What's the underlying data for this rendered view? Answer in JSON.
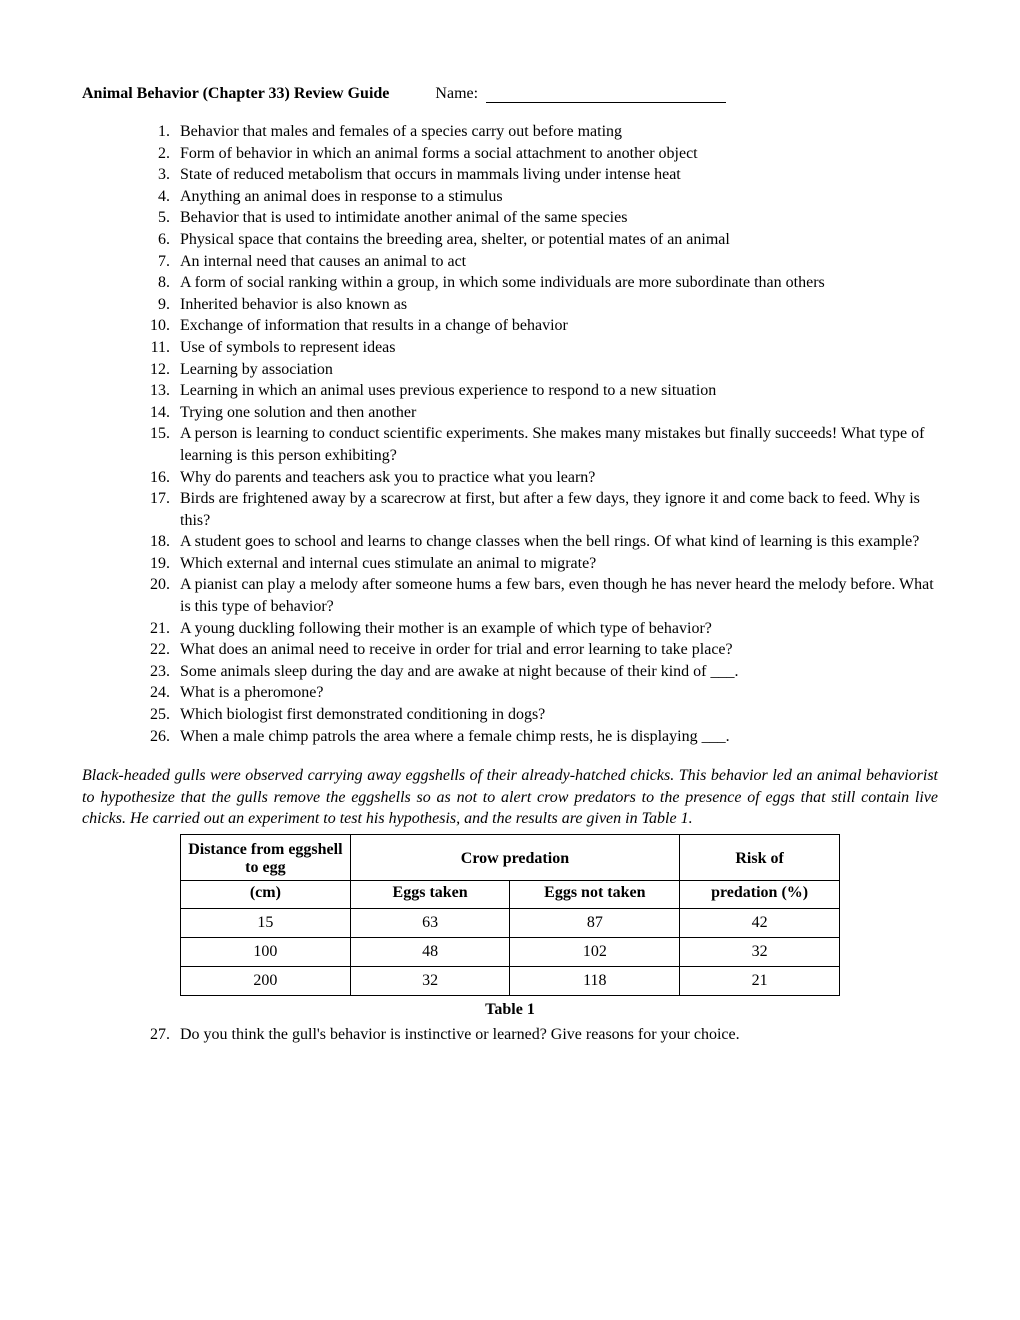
{
  "header": {
    "title": "Animal Behavior (Chapter 33) Review Guide",
    "name_label": "Name:"
  },
  "questions": [
    "Behavior that males and females of a species carry out before mating",
    "Form of behavior in which an animal forms a social attachment to another object",
    "State of reduced metabolism that occurs in mammals living under intense heat",
    "Anything an animal does in response to a stimulus",
    "Behavior that is used to intimidate another animal of the same species",
    "Physical space that contains the breeding area, shelter, or potential mates of an animal",
    "An internal need that causes an animal to act",
    "A form of social ranking within a group, in which some individuals are more subordinate than others",
    "Inherited behavior is also known as",
    "Exchange of information that results in a change of behavior",
    "Use of symbols to represent ideas",
    "Learning by association",
    "Learning in which an animal uses previous experience to respond to a new situation",
    "Trying one solution and then another",
    "A person is learning to conduct scientific experiments. She makes many mistakes but finally succeeds! What type of learning is this person exhibiting?",
    "Why do parents and teachers ask you to practice what you learn?",
    "Birds are frightened away by a scarecrow at first, but after a few days, they ignore it and come back to feed. Why is this?",
    "A student goes to school and learns to change classes when the bell rings. Of what kind of learning is this example?",
    "Which external and internal cues stimulate an animal to migrate?",
    "A pianist can play a melody after someone hums a few bars, even though he has never heard the melody before. What is this type of behavior?",
    "A young duckling following their mother is an example of which type of behavior?",
    "What does an animal need to receive in order for trial and error learning to take place?",
    "Some animals sleep during the day and are awake at night because of their kind of ___.",
    "What is a pheromone?",
    "Which biologist first demonstrated conditioning in dogs?",
    "When a male chimp patrols the area where a female chimp rests, he is displaying ___."
  ],
  "paragraph": "Black-headed gulls were observed carrying away eggshells of their already-hatched chicks. This behavior led an animal behaviorist to hypothesize that the gulls remove the eggshells so as not to alert crow predators to the presence of eggs that still contain live chicks. He carried out an experiment to test his hypothesis, and the results are given in Table 1.",
  "table": {
    "header_row1": {
      "col1": "Distance from eggshell to egg",
      "col2": "Crow predation",
      "col3": "Risk of"
    },
    "header_row2": {
      "col1": "(cm)",
      "col2": "Eggs taken",
      "col3": "Eggs not taken",
      "col4": "predation (%)"
    },
    "rows": [
      [
        "15",
        "63",
        "87",
        "42"
      ],
      [
        "100",
        "48",
        "102",
        "32"
      ],
      [
        "200",
        "32",
        "118",
        "21"
      ]
    ],
    "caption": "Table 1",
    "col_widths": [
      "170px",
      "160px",
      "170px",
      "160px"
    ]
  },
  "questions_after": [
    "Do you think the gull's behavior is instinctive or learned? Give reasons for your choice."
  ],
  "questions_after_start": 27
}
